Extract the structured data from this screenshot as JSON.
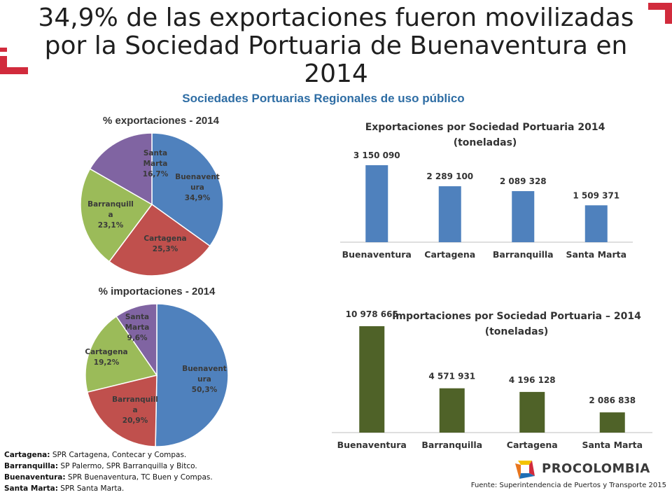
{
  "title": "34,9% de las exportaciones fueron movilizadas por la Sociedad Portuaria de Buenaventura en 2014",
  "subtitle": "Sociedades Portuarias Regionales de uso público",
  "colors": {
    "blue": "#4f81bd",
    "red": "#c0504d",
    "green": "#9bbb59",
    "purple": "#8064a2",
    "export_bar": "#4f81bd",
    "import_bar": "#4f6228",
    "accent": "#d12b3c"
  },
  "chart_data": [
    {
      "type": "pie",
      "title": "% exportaciones - 2014",
      "slices": [
        {
          "label": [
            "Buenavent",
            "ura"
          ],
          "value": 34.9,
          "value_text": "34,9%",
          "color": "#4f81bd"
        },
        {
          "label": [
            "Cartagena"
          ],
          "value": 25.3,
          "value_text": "25,3%",
          "color": "#c0504d"
        },
        {
          "label": [
            "Barranquill",
            "a"
          ],
          "value": 23.1,
          "value_text": "23,1%",
          "color": "#9bbb59"
        },
        {
          "label": [
            "Santa",
            "Marta"
          ],
          "value": 16.7,
          "value_text": "16,7%",
          "color": "#8064a2"
        }
      ]
    },
    {
      "type": "pie",
      "title": "% importaciones - 2014",
      "slices": [
        {
          "label": [
            "Buenavent",
            "ura"
          ],
          "value": 50.3,
          "value_text": "50,3%",
          "color": "#4f81bd"
        },
        {
          "label": [
            "Barranquill",
            "a"
          ],
          "value": 20.9,
          "value_text": "20,9%",
          "color": "#c0504d"
        },
        {
          "label": [
            "Cartagena"
          ],
          "value": 19.2,
          "value_text": "19,2%",
          "color": "#9bbb59"
        },
        {
          "label": [
            "Santa",
            "Marta"
          ],
          "value": 9.6,
          "value_text": "9,6%",
          "color": "#8064a2"
        }
      ]
    },
    {
      "type": "bar",
      "title": [
        "Exportaciones por Sociedad Portuaria 2014",
        "(toneladas)"
      ],
      "categories": [
        "Buenaventura",
        "Cartagena",
        "Barranquilla",
        "Santa Marta"
      ],
      "values": [
        3150090,
        2289100,
        2089328,
        1509371
      ],
      "value_labels": [
        "3 150 090",
        "2 289 100",
        "2 089 328",
        "1 509 371"
      ],
      "color": "#4f81bd"
    },
    {
      "type": "bar",
      "title": [
        "Importaciones por Sociedad Portuaria – 2014",
        "(toneladas)"
      ],
      "categories": [
        "Buenaventura",
        "Barranquilla",
        "Cartagena",
        "Santa Marta"
      ],
      "values": [
        10978665,
        4571931,
        4196128,
        2086838
      ],
      "value_labels": [
        "10 978 665",
        "4 571 931",
        "4 196 128",
        "2 086 838"
      ],
      "color": "#4f6228"
    }
  ],
  "notes": [
    {
      "city": "Cartagena:",
      "text": " SPR Cartagena, Contecar y Compas."
    },
    {
      "city": "Barranquilla:",
      "text": " SP Palermo, SPR Barranquilla y Bitco."
    },
    {
      "city": "Buenaventura:",
      "text": " SPR Buenaventura, TC Buen y Compas."
    },
    {
      "city": "Santa Marta:",
      "text": " SPR Santa Marta."
    }
  ],
  "source": "Fuente: Superintendencia de Puertos y Transporte 2015",
  "logo": {
    "text": "PROCOLOMBIA",
    "icon": "procolombia-logo-icon"
  }
}
